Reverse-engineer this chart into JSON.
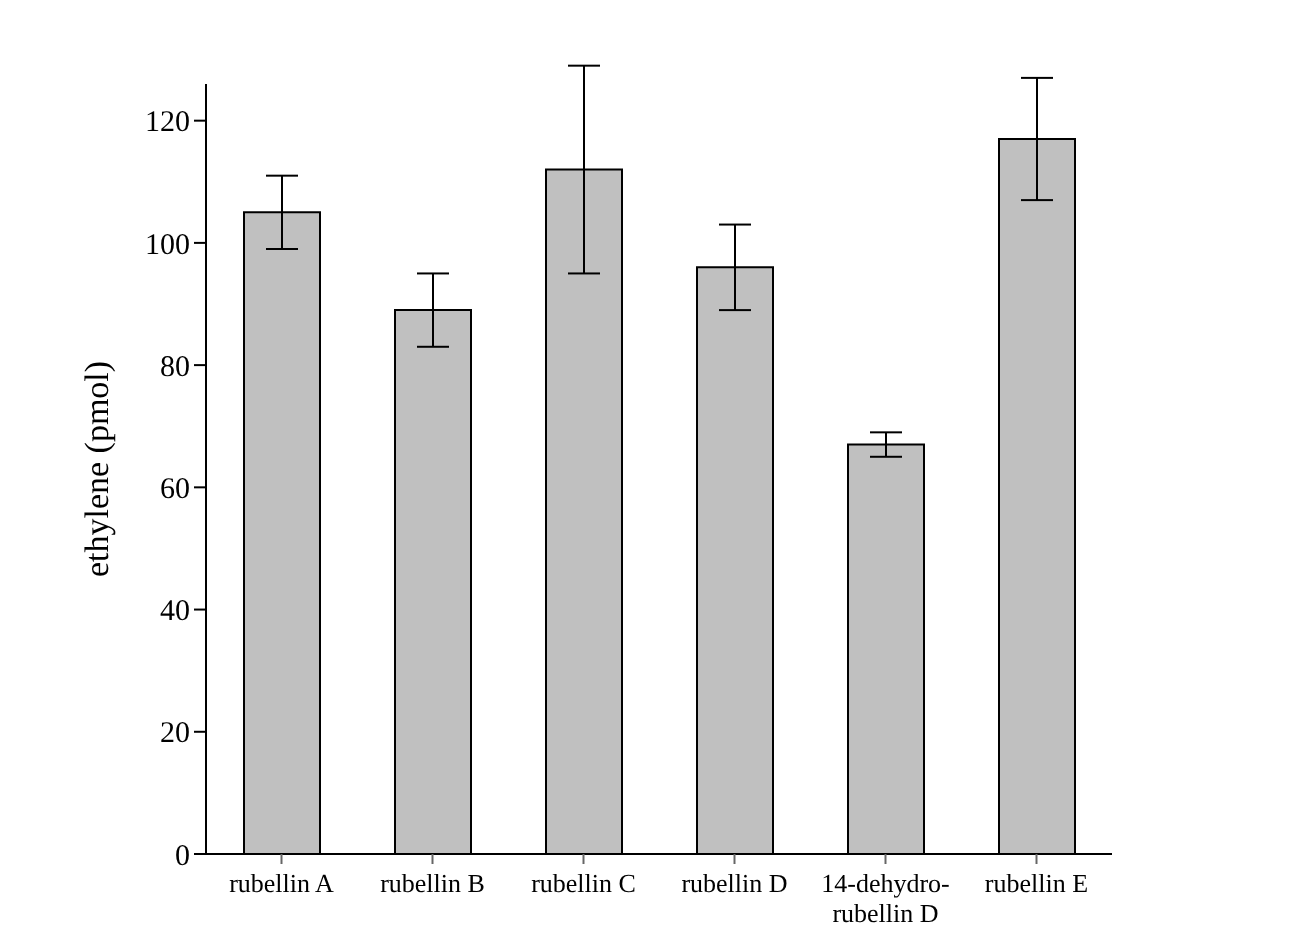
{
  "chart_data": {
    "type": "bar",
    "ylabel": "ethylene (pmol)",
    "categories": [
      "rubellin A",
      "rubellin B",
      "rubellin C",
      "rubellin D",
      "14-dehydro-\nrubellin D",
      "rubellin E"
    ],
    "values": [
      105,
      89,
      112,
      96,
      67,
      117
    ],
    "errors": [
      [
        99,
        111
      ],
      [
        83,
        95
      ],
      [
        95,
        129
      ],
      [
        89,
        103
      ],
      [
        65,
        69
      ],
      [
        107,
        127
      ]
    ],
    "color": "#c0c0c0",
    "ylim": [
      0,
      126
    ],
    "yticks": [
      0,
      20,
      40,
      60,
      80,
      100,
      120
    ],
    "grid": false,
    "legend": false
  }
}
